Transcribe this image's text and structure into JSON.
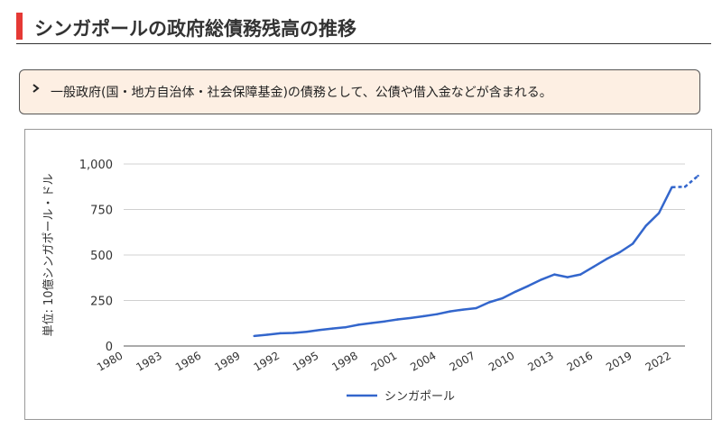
{
  "page": {
    "title": "シンガポールの政府総債務残高の推移",
    "note": "一般政府(国・地方自治体・社会保障基金)の債務として、公債や借入金などが含まれる。",
    "accent_color": "#e53935",
    "note_background": "#fdefe3",
    "bullet_icon": "chevron-right-icon"
  },
  "chart_data": {
    "type": "line",
    "ylabel": "単位: 10億シンガポール・ドル",
    "ylim": [
      0,
      1000
    ],
    "yticks": [
      0,
      250,
      500,
      750,
      1000
    ],
    "ytick_labels": [
      "0",
      "250",
      "500",
      "750",
      "1,000"
    ],
    "xlim": [
      1980,
      2023
    ],
    "xticks": [
      1980,
      1983,
      1986,
      1989,
      1992,
      1995,
      1998,
      2001,
      2004,
      2007,
      2010,
      2013,
      2016,
      2019,
      2022
    ],
    "xtick_labels": [
      "1980",
      "1983",
      "1986",
      "1989",
      "1992",
      "1995",
      "1998",
      "2001",
      "2004",
      "2007",
      "2010",
      "2013",
      "2016",
      "2019",
      "2022"
    ],
    "grid": true,
    "legend_position": "bottom",
    "series": [
      {
        "name": "シンガポール",
        "color": "#3366cc",
        "dashed_from": 2022,
        "points": [
          [
            1990,
            55
          ],
          [
            1991,
            62
          ],
          [
            1992,
            70
          ],
          [
            1993,
            72
          ],
          [
            1994,
            78
          ],
          [
            1995,
            88
          ],
          [
            1996,
            96
          ],
          [
            1997,
            103
          ],
          [
            1998,
            117
          ],
          [
            1999,
            126
          ],
          [
            2000,
            135
          ],
          [
            2001,
            146
          ],
          [
            2002,
            154
          ],
          [
            2003,
            164
          ],
          [
            2004,
            175
          ],
          [
            2005,
            190
          ],
          [
            2006,
            200
          ],
          [
            2007,
            208
          ],
          [
            2008,
            240
          ],
          [
            2009,
            262
          ],
          [
            2010,
            298
          ],
          [
            2011,
            330
          ],
          [
            2012,
            365
          ],
          [
            2013,
            393
          ],
          [
            2014,
            378
          ],
          [
            2015,
            393
          ],
          [
            2016,
            435
          ],
          [
            2017,
            478
          ],
          [
            2018,
            515
          ],
          [
            2019,
            562
          ],
          [
            2020,
            660
          ],
          [
            2021,
            730
          ],
          [
            2022,
            873
          ],
          [
            2023,
            875
          ],
          [
            2024,
            935
          ]
        ]
      }
    ]
  }
}
